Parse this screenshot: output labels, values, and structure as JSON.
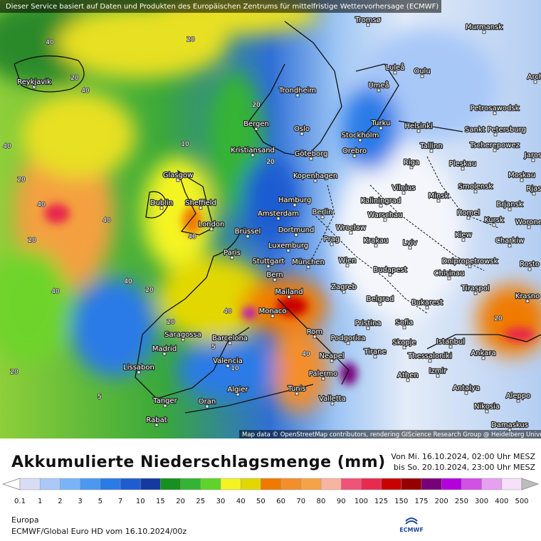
{
  "header": {
    "disclaimer": "Dieser Service basiert auf Daten und Produkten des Europäischen Zentrums für mittelfristige Wettervorhersage (ECMWF)"
  },
  "map": {
    "cities": [
      "Tromsø",
      "Murmansk",
      "Reykjavik",
      "Luleå",
      "Oulu",
      "Arch",
      "Umeå",
      "Trondheim",
      "Petrosawodsk",
      "Bergen",
      "Turku",
      "Helsinki",
      "Sankt Petersburg",
      "Oslo",
      "Stockholm",
      "Tallinn",
      "Orebro",
      "Kristiansand",
      "Göteborg",
      "Tscherepowez",
      "Jaros",
      "Riga",
      "Pleskau",
      "Glasgow",
      "Kopenhagen",
      "Moskau",
      "Smolensk",
      "Rjas",
      "Vilnius",
      "Minsk",
      "Hamburg",
      "Kaliningrad",
      "Dublin",
      "Sheffield",
      "Brjansk",
      "Amsterdam",
      "Berlin",
      "Warschau",
      "Homel",
      "London",
      "Kursk",
      "Worone",
      "Dortmund",
      "Wrocław",
      "Brüssel",
      "Kiew",
      "Prag",
      "Krakau",
      "Lviv",
      "Charkiw",
      "Luxemburg",
      "Paris",
      "Stuttgart",
      "München",
      "Wien",
      "Dnipropetrowsk",
      "Rosto",
      "Chisinau",
      "Budapest",
      "Bern",
      "Mailand",
      "Zagreb",
      "Tiraspol",
      "Krasno",
      "Belgrad",
      "Monaco",
      "Bukarest",
      "Rom",
      "Pristina",
      "Sofia",
      "Podgorica",
      "Saragossa",
      "Barcelona",
      "Istanbul",
      "Skopje",
      "Madrid",
      "Tirane",
      "Ankara",
      "Neapel",
      "Thessaloniki",
      "Valencia",
      "Lissabon",
      "Izmir",
      "Palermo",
      "Athen",
      "Algier",
      "Tunis",
      "Antalya",
      "Aleppo",
      "Valletta",
      "Tanger",
      "Oran",
      "Nikosia",
      "Rabat",
      "Damaskus"
    ],
    "contour_labels": [
      "40",
      "20",
      "40",
      "20",
      "40",
      "20",
      "40",
      "40",
      "40",
      "20",
      "40",
      "20",
      "5",
      "10",
      "20",
      "40",
      "20",
      "5",
      "10",
      "20",
      "40",
      "40",
      "20",
      "20"
    ],
    "attribution": "Map data © OpenStreetMap contributors, rendering GIScience Research Group @ Heidelberg University"
  },
  "title": "Akkumulierte Niederschlagsmenge (mm)",
  "period": {
    "from": "Von Mi. 16.10.2024, 02:00 Uhr MESZ",
    "to": "bis So. 20.10.2024, 23:00 Uhr MESZ"
  },
  "legend": {
    "values": [
      0.1,
      1,
      2,
      3,
      5,
      7,
      10,
      15,
      20,
      25,
      30,
      40,
      50,
      60,
      70,
      80,
      90,
      100,
      125,
      150,
      175,
      200,
      250,
      300,
      400,
      500
    ],
    "colors": [
      "#d8dcf4",
      "#aac8f8",
      "#7ab4f8",
      "#4a98f0",
      "#2a7ae8",
      "#1e5cd2",
      "#143aa0",
      "#16901e",
      "#34b434",
      "#5ed42a",
      "#f4f422",
      "#e2d800",
      "#f07a00",
      "#f48e2a",
      "#f6a246",
      "#f8b4a0",
      "#f05278",
      "#e82a4e",
      "#c80000",
      "#960000",
      "#780078",
      "#b400dc",
      "#d250e6",
      "#e6a0f0",
      "#f6e0fa"
    ],
    "low_color": "#ffffff",
    "high_color": "#bdbdbd"
  },
  "footer": {
    "region": "Europa",
    "model": "ECMWF/Global Euro HD vom  16.10.2024/00z",
    "logo": "ECMWF"
  }
}
